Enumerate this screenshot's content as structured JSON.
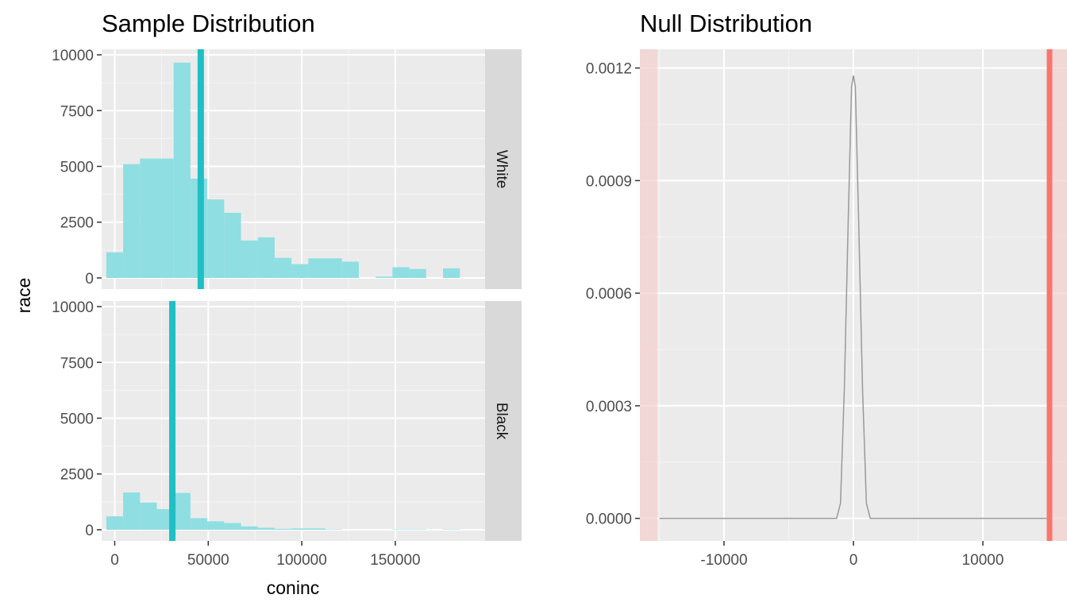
{
  "chart_data": [
    {
      "type": "histogram",
      "title": "Sample Distribution",
      "xlabel": "coninc",
      "ylabel": "race",
      "xlim": [
        -7000,
        198000
      ],
      "ylim": [
        -500,
        10250
      ],
      "x_ticks": [
        0,
        50000,
        100000,
        150000
      ],
      "x_tick_labels": [
        "0",
        "50000",
        "100000",
        "150000"
      ],
      "y_ticks": [
        0,
        2500,
        5000,
        7500,
        10000
      ],
      "y_tick_labels": [
        "0",
        "2500",
        "5000",
        "7500",
        "10000"
      ],
      "bin_width": 9000,
      "colors": {
        "bars": "#8fdee2",
        "mean_line": "#1fbfc4",
        "strip": "#d9d9d9",
        "panel": "#ebebeb",
        "grid": "#ffffff"
      },
      "facets": [
        {
          "label": "White",
          "bin_centers": [
            0,
            9000,
            18000,
            27000,
            36000,
            45000,
            54000,
            63000,
            72000,
            81000,
            90000,
            99000,
            108000,
            117000,
            126000,
            135000,
            144000,
            153000,
            162000,
            171000,
            180000
          ],
          "counts": [
            1150,
            5100,
            5350,
            5350,
            9650,
            4450,
            3520,
            2920,
            1680,
            1820,
            900,
            620,
            880,
            880,
            730,
            0,
            60,
            480,
            400,
            0,
            430
          ],
          "mean": 46000
        },
        {
          "label": "Black",
          "bin_centers": [
            0,
            9000,
            18000,
            27000,
            36000,
            45000,
            54000,
            63000,
            72000,
            81000,
            90000,
            99000,
            108000,
            117000,
            126000,
            135000,
            144000,
            153000,
            162000,
            171000,
            180000
          ],
          "counts": [
            600,
            1670,
            1220,
            920,
            1650,
            520,
            380,
            300,
            150,
            90,
            40,
            60,
            60,
            20,
            0,
            0,
            0,
            20,
            20,
            0,
            20
          ],
          "mean": 30800
        }
      ]
    },
    {
      "type": "line",
      "title": "Null Distribution",
      "xlim": [
        -16500,
        16500
      ],
      "ylim": [
        -6e-05,
        0.00125
      ],
      "x_ticks": [
        -10000,
        0,
        10000
      ],
      "x_tick_labels": [
        "-10000",
        "0",
        "10000"
      ],
      "y_ticks": [
        0,
        0.0003,
        0.0006,
        0.0009,
        0.0012
      ],
      "y_tick_labels": [
        "0.0000",
        "0.0003",
        "0.0006",
        "0.0009",
        "0.0012"
      ],
      "density": {
        "x": [
          -15000,
          -1300,
          -1000,
          -700,
          -400,
          -150,
          0,
          150,
          400,
          700,
          1000,
          1300,
          15000
        ],
        "y": [
          0,
          0,
          4e-05,
          0.00035,
          0.0008,
          0.00115,
          0.00118,
          0.00115,
          0.0008,
          0.00035,
          4e-05,
          0,
          0
        ]
      },
      "observed_stat": 15150,
      "shade_from": -15150,
      "colors": {
        "line": "#999999",
        "obs_line": "#f8766d",
        "shade": "#f5cfcf",
        "panel": "#ebebeb",
        "grid": "#ffffff"
      }
    }
  ]
}
